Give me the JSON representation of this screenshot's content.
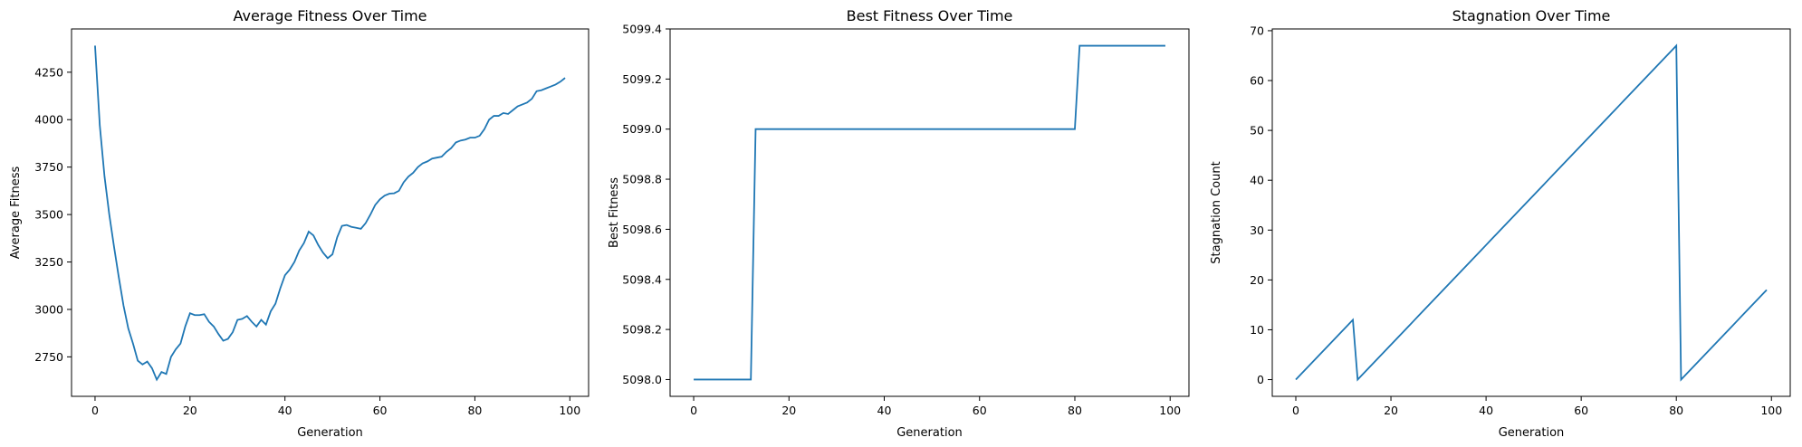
{
  "chart_data": [
    {
      "type": "line",
      "title": "Average Fitness Over Time",
      "xlabel": "Generation",
      "ylabel": "Average Fitness",
      "x": [
        0,
        1,
        2,
        3,
        4,
        5,
        6,
        7,
        8,
        9,
        10,
        11,
        12,
        13,
        14,
        15,
        16,
        17,
        18,
        19,
        20,
        21,
        22,
        23,
        24,
        25,
        26,
        27,
        28,
        29,
        30,
        31,
        32,
        33,
        34,
        35,
        36,
        37,
        38,
        39,
        40,
        41,
        42,
        43,
        44,
        45,
        46,
        47,
        48,
        49,
        50,
        51,
        52,
        53,
        54,
        55,
        56,
        57,
        58,
        59,
        60,
        61,
        62,
        63,
        64,
        65,
        66,
        67,
        68,
        69,
        70,
        71,
        72,
        73,
        74,
        75,
        76,
        77,
        78,
        79,
        80,
        81,
        82,
        83,
        84,
        85,
        86,
        87,
        88,
        89,
        90,
        91,
        92,
        93,
        94,
        95,
        96,
        97,
        98,
        99
      ],
      "series": [
        {
          "color": "#1f77b4",
          "values": [
            4390,
            3970,
            3700,
            3500,
            3330,
            3170,
            3020,
            2900,
            2820,
            2730,
            2710,
            2725,
            2690,
            2630,
            2670,
            2660,
            2750,
            2790,
            2820,
            2910,
            2980,
            2970,
            2970,
            2975,
            2935,
            2910,
            2870,
            2835,
            2845,
            2880,
            2945,
            2950,
            2965,
            2935,
            2910,
            2945,
            2920,
            2990,
            3030,
            3110,
            3180,
            3210,
            3250,
            3310,
            3350,
            3410,
            3390,
            3340,
            3300,
            3270,
            3290,
            3380,
            3440,
            3445,
            3435,
            3430,
            3425,
            3455,
            3500,
            3550,
            3580,
            3600,
            3610,
            3612,
            3625,
            3670,
            3700,
            3720,
            3750,
            3770,
            3780,
            3795,
            3800,
            3805,
            3830,
            3850,
            3880,
            3890,
            3895,
            3905,
            3905,
            3915,
            3950,
            4000,
            4020,
            4020,
            4035,
            4030,
            4050,
            4070,
            4080,
            4090,
            4110,
            4150,
            4155,
            4165,
            4175,
            4185,
            4200,
            4220
          ]
        }
      ],
      "xlim": [
        -4.95,
        103.95
      ],
      "xticks": [
        0,
        20,
        40,
        60,
        80,
        100
      ],
      "ylim": [
        2542,
        4478
      ],
      "yticks": [
        2750,
        3000,
        3250,
        3500,
        3750,
        4000,
        4250
      ]
    },
    {
      "type": "line",
      "title": "Best Fitness Over Time",
      "xlabel": "Generation",
      "ylabel": "Best Fitness",
      "x": [
        0,
        1,
        2,
        3,
        4,
        5,
        6,
        7,
        8,
        9,
        10,
        11,
        12,
        13,
        14,
        15,
        16,
        17,
        18,
        19,
        20,
        21,
        22,
        23,
        24,
        25,
        26,
        27,
        28,
        29,
        30,
        31,
        32,
        33,
        34,
        35,
        36,
        37,
        38,
        39,
        40,
        41,
        42,
        43,
        44,
        45,
        46,
        47,
        48,
        49,
        50,
        51,
        52,
        53,
        54,
        55,
        56,
        57,
        58,
        59,
        60,
        61,
        62,
        63,
        64,
        65,
        66,
        67,
        68,
        69,
        70,
        71,
        72,
        73,
        74,
        75,
        76,
        77,
        78,
        79,
        80,
        81,
        82,
        83,
        84,
        85,
        86,
        87,
        88,
        89,
        90,
        91,
        92,
        93,
        94,
        95,
        96,
        97,
        98,
        99
      ],
      "series": [
        {
          "color": "#1f77b4",
          "values": [
            5098,
            5098,
            5098,
            5098,
            5098,
            5098,
            5098,
            5098,
            5098,
            5098,
            5098,
            5098,
            5098,
            5099,
            5099,
            5099,
            5099,
            5099,
            5099,
            5099,
            5099,
            5099,
            5099,
            5099,
            5099,
            5099,
            5099,
            5099,
            5099,
            5099,
            5099,
            5099,
            5099,
            5099,
            5099,
            5099,
            5099,
            5099,
            5099,
            5099,
            5099,
            5099,
            5099,
            5099,
            5099,
            5099,
            5099,
            5099,
            5099,
            5099,
            5099,
            5099,
            5099,
            5099,
            5099,
            5099,
            5099,
            5099,
            5099,
            5099,
            5099,
            5099,
            5099,
            5099,
            5099,
            5099,
            5099,
            5099,
            5099,
            5099,
            5099,
            5099,
            5099,
            5099,
            5099,
            5099,
            5099,
            5099,
            5099,
            5099,
            5099,
            5099.333,
            5099.333,
            5099.333,
            5099.333,
            5099.333,
            5099.333,
            5099.333,
            5099.333,
            5099.333,
            5099.333,
            5099.333,
            5099.333,
            5099.333,
            5099.333,
            5099.333,
            5099.333,
            5099.333,
            5099.333,
            5099.333
          ]
        }
      ],
      "xlim": [
        -4.95,
        103.95
      ],
      "xticks": [
        0,
        20,
        40,
        60,
        80,
        100
      ],
      "ylim": [
        5097.933,
        5099.4
      ],
      "yticks": [
        {
          "value": 5098,
          "label": "5098.0"
        },
        {
          "value": 5098.2,
          "label": "5098.2"
        },
        {
          "value": 5098.4,
          "label": "5098.4"
        },
        {
          "value": 5098.6,
          "label": "5098.6"
        },
        {
          "value": 5098.8,
          "label": "5098.8"
        },
        {
          "value": 5099,
          "label": "5099.0"
        },
        {
          "value": 5099.2,
          "label": "5099.2"
        },
        {
          "value": 5099.4,
          "label": "5099.4"
        }
      ]
    },
    {
      "type": "line",
      "title": "Stagnation Over Time",
      "xlabel": "Generation",
      "ylabel": "Stagnation Count",
      "x": [
        0,
        1,
        2,
        3,
        4,
        5,
        6,
        7,
        8,
        9,
        10,
        11,
        12,
        13,
        14,
        15,
        16,
        17,
        18,
        19,
        20,
        21,
        22,
        23,
        24,
        25,
        26,
        27,
        28,
        29,
        30,
        31,
        32,
        33,
        34,
        35,
        36,
        37,
        38,
        39,
        40,
        41,
        42,
        43,
        44,
        45,
        46,
        47,
        48,
        49,
        50,
        51,
        52,
        53,
        54,
        55,
        56,
        57,
        58,
        59,
        60,
        61,
        62,
        63,
        64,
        65,
        66,
        67,
        68,
        69,
        70,
        71,
        72,
        73,
        74,
        75,
        76,
        77,
        78,
        79,
        80,
        81,
        82,
        83,
        84,
        85,
        86,
        87,
        88,
        89,
        90,
        91,
        92,
        93,
        94,
        95,
        96,
        97,
        98,
        99
      ],
      "series": [
        {
          "color": "#1f77b4",
          "values": [
            0,
            1,
            2,
            3,
            4,
            5,
            6,
            7,
            8,
            9,
            10,
            11,
            12,
            0,
            1,
            2,
            3,
            4,
            5,
            6,
            7,
            8,
            9,
            10,
            11,
            12,
            13,
            14,
            15,
            16,
            17,
            18,
            19,
            20,
            21,
            22,
            23,
            24,
            25,
            26,
            27,
            28,
            29,
            30,
            31,
            32,
            33,
            34,
            35,
            36,
            37,
            38,
            39,
            40,
            41,
            42,
            43,
            44,
            45,
            46,
            47,
            48,
            49,
            50,
            51,
            52,
            53,
            54,
            55,
            56,
            57,
            58,
            59,
            60,
            61,
            62,
            63,
            64,
            65,
            66,
            67,
            0,
            1,
            2,
            3,
            4,
            5,
            6,
            7,
            8,
            9,
            10,
            11,
            12,
            13,
            14,
            15,
            16,
            17,
            18
          ]
        }
      ],
      "xlim": [
        -4.95,
        103.95
      ],
      "xticks": [
        0,
        20,
        40,
        60,
        80,
        100
      ],
      "ylim": [
        -3.35,
        70.35
      ],
      "yticks": [
        0,
        10,
        20,
        30,
        40,
        50,
        60,
        70
      ]
    }
  ]
}
